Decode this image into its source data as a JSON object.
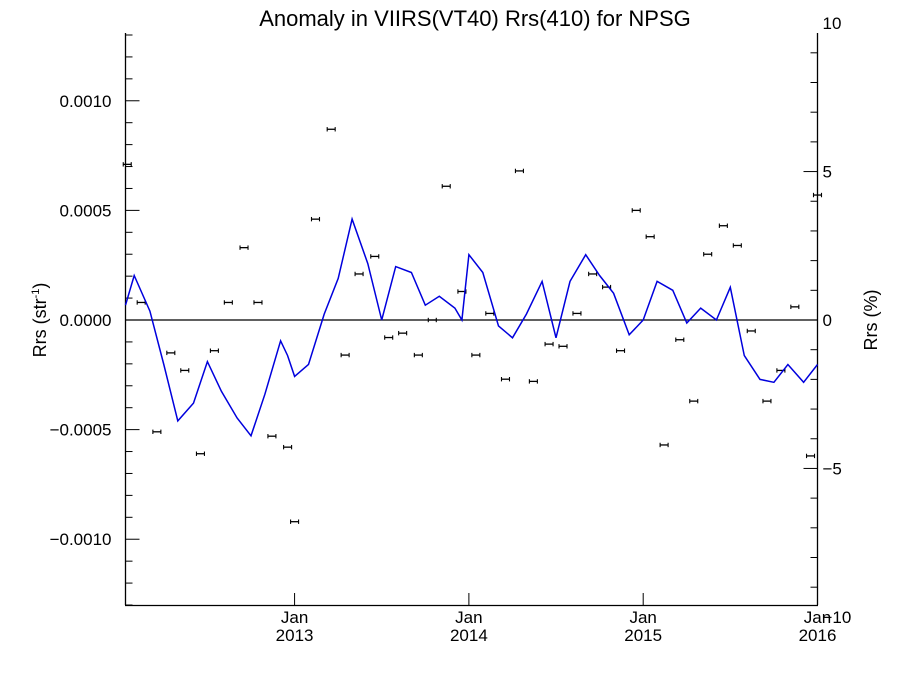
{
  "chart_data": {
    "type": "scatter",
    "title": "Anomaly in VIIRS(VT40) Rrs(410) for NPSG",
    "ylabel_left": "Rrs (str",
    "ylabel_left_sup": "-1",
    "ylabel_left_close": ")",
    "ylabel_right": "Rrs (%)",
    "x_axis": {
      "range_years": [
        2012.03,
        2016.0
      ],
      "ticks": [
        {
          "pos": 2013.0,
          "month": "Jan",
          "year": "2013"
        },
        {
          "pos": 2014.0,
          "month": "Jan",
          "year": "2014"
        },
        {
          "pos": 2015.0,
          "month": "Jan",
          "year": "2015"
        },
        {
          "pos": 2016.0,
          "month": "Jan",
          "year": "2016"
        }
      ]
    },
    "y_left": {
      "range": [
        -0.0013,
        0.0013
      ],
      "ticks": [
        {
          "value": 0.001,
          "label": "0.0010"
        },
        {
          "value": 0.0005,
          "label": "0.0005"
        },
        {
          "value": 0.0,
          "label": "0.0000"
        },
        {
          "value": -0.0005,
          "label": "−0.0005"
        },
        {
          "value": -0.001,
          "label": "−0.0010"
        }
      ],
      "minor_step": 0.0001
    },
    "y_right": {
      "range": [
        -9.6,
        9.6
      ],
      "ticks": [
        {
          "value": 10,
          "label": "10"
        },
        {
          "value": 5,
          "label": "5"
        },
        {
          "value": 0,
          "label": "0"
        },
        {
          "value": -5,
          "label": "−5"
        },
        {
          "value": -10,
          "label": "−10"
        }
      ],
      "minor_step": 1
    },
    "zero_line": 0,
    "colors": {
      "points": "#000000",
      "line": "#0000dd",
      "axes": "#000000"
    },
    "series": [
      {
        "kind": "points_with_errorbars",
        "x": [
          2012.04,
          2012.12,
          2012.21,
          2012.29,
          2012.37,
          2012.46,
          2012.54,
          2012.62,
          2012.71,
          2012.79,
          2012.87,
          2012.96,
          2013.0,
          2013.12,
          2013.21,
          2013.29,
          2013.37,
          2013.46,
          2013.54,
          2013.62,
          2013.71,
          2013.79,
          2013.87,
          2013.96,
          2014.04,
          2014.12,
          2014.21,
          2014.29,
          2014.37,
          2014.46,
          2014.54,
          2014.62,
          2014.71,
          2014.79,
          2014.87,
          2014.96,
          2015.04,
          2015.12,
          2015.21,
          2015.29,
          2015.37,
          2015.46,
          2015.54,
          2015.62,
          2015.71,
          2015.79,
          2015.87,
          2015.96,
          2016.0
        ],
        "y": [
          0.00071,
          8e-05,
          -0.00051,
          -0.00015,
          -0.00023,
          -0.00061,
          -0.00014,
          8e-05,
          0.00033,
          8e-05,
          -0.00053,
          -0.00058,
          -0.00092,
          0.00046,
          0.00087,
          -0.00016,
          0.00021,
          0.00029,
          -8e-05,
          -6e-05,
          -0.00016,
          0.0,
          0.00061,
          0.00013,
          -0.00016,
          3e-05,
          -0.00027,
          0.00068,
          -0.00028,
          -0.00011,
          -0.00012,
          3e-05,
          0.00021,
          0.00015,
          -0.00014,
          0.0005,
          0.00038,
          -0.00057,
          -9e-05,
          -0.00037,
          0.0003,
          0.00043,
          0.00034,
          -5e-05,
          -0.00037,
          -0.00023,
          6e-05,
          -0.00062,
          0.00057
        ]
      },
      {
        "kind": "line",
        "x": [
          2012.0,
          2012.08,
          2012.17,
          2012.25,
          2012.33,
          2012.42,
          2012.5,
          2012.58,
          2012.67,
          2012.75,
          2012.83,
          2012.92,
          2012.96,
          2013.0,
          2013.08,
          2013.17,
          2013.25,
          2013.33,
          2013.42,
          2013.5,
          2013.58,
          2013.67,
          2013.75,
          2013.83,
          2013.92,
          2013.96,
          2014.0,
          2014.08,
          2014.17,
          2014.25,
          2014.33,
          2014.42,
          2014.5,
          2014.58,
          2014.67,
          2014.75,
          2014.83,
          2014.92,
          2015.0,
          2015.08,
          2015.17,
          2015.25,
          2015.33,
          2015.42,
          2015.5,
          2015.58,
          2015.67,
          2015.75,
          2015.83,
          2015.92,
          2016.0
        ],
        "y": [
          0.5,
          1.5,
          0.3,
          -1.5,
          -3.4,
          -2.8,
          -1.4,
          -2.4,
          -3.3,
          -3.9,
          -2.5,
          -0.7,
          -1.2,
          -1.9,
          -1.5,
          0.2,
          1.4,
          3.4,
          1.9,
          0.0,
          1.8,
          1.6,
          0.5,
          0.8,
          0.4,
          0.0,
          2.2,
          1.6,
          -0.2,
          -0.6,
          0.2,
          1.3,
          -0.6,
          1.3,
          2.2,
          1.5,
          0.9,
          -0.5,
          0.0,
          1.3,
          1.0,
          -0.1,
          0.4,
          0.0,
          1.1,
          -1.2,
          -2.0,
          -2.1,
          -1.5,
          -2.1,
          -1.5
        ]
      }
    ]
  }
}
